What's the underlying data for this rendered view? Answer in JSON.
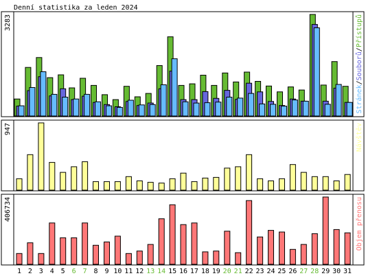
{
  "title": "Denní statistika za leden 2024",
  "colors": {
    "hits": "#66bb33",
    "files": "#6666dd",
    "pages": "#66bbff",
    "visits": "#ffff99",
    "kbytes": "#ff7777",
    "weekend": "#66bb33",
    "text": "#000000",
    "border": "#000000",
    "sidebar_sep": "#000000"
  },
  "chart_data": [
    {
      "type": "bar",
      "panel": "hits-files-pages",
      "ymax_label": "3283",
      "ylim": [
        0,
        3283
      ],
      "side_labels": [
        "Stránek",
        "/",
        "Souborů",
        "/",
        "Přístupů"
      ],
      "side_label_colors": [
        "#66bbff",
        "#000000",
        "#6666dd",
        "#000000",
        "#66bb33"
      ],
      "categories": [
        "1",
        "2",
        "3",
        "4",
        "5",
        "6",
        "7",
        "8",
        "9",
        "10",
        "11",
        "12",
        "13",
        "14",
        "15",
        "16",
        "17",
        "18",
        "19",
        "20",
        "21",
        "22",
        "23",
        "24",
        "25",
        "26",
        "27",
        "28",
        "29",
        "30",
        "31"
      ],
      "series": [
        {
          "name": "Přístupů",
          "values": [
            550,
            1570,
            1890,
            1240,
            1330,
            910,
            1220,
            990,
            690,
            530,
            960,
            620,
            730,
            1630,
            2560,
            990,
            1040,
            1320,
            990,
            1390,
            1100,
            1420,
            1120,
            970,
            780,
            940,
            840,
            3283,
            1000,
            1760,
            960
          ]
        },
        {
          "name": "Souborů",
          "values": [
            320,
            820,
            1270,
            650,
            880,
            530,
            640,
            440,
            370,
            300,
            470,
            340,
            420,
            880,
            1450,
            530,
            530,
            790,
            570,
            830,
            540,
            1060,
            780,
            470,
            340,
            550,
            480,
            2960,
            480,
            900,
            440
          ]
        },
        {
          "name": "Stránek",
          "values": [
            330,
            920,
            1430,
            700,
            610,
            550,
            700,
            460,
            330,
            280,
            510,
            360,
            370,
            1010,
            1850,
            460,
            420,
            430,
            450,
            610,
            580,
            730,
            390,
            380,
            320,
            520,
            480,
            2850,
            380,
            1020,
            440
          ]
        }
      ]
    },
    {
      "type": "bar",
      "panel": "visits",
      "ymax_label": "947",
      "ylim": [
        0,
        947
      ],
      "side_labels": [
        "Návštěv"
      ],
      "side_label_colors": [
        "#ffff99"
      ],
      "categories": [
        "1",
        "2",
        "3",
        "4",
        "5",
        "6",
        "7",
        "8",
        "9",
        "10",
        "11",
        "12",
        "13",
        "14",
        "15",
        "16",
        "17",
        "18",
        "19",
        "20",
        "21",
        "22",
        "23",
        "24",
        "25",
        "26",
        "27",
        "28",
        "29",
        "30",
        "31"
      ],
      "series": [
        {
          "name": "Návštěv",
          "values": [
            160,
            500,
            947,
            390,
            250,
            330,
            400,
            120,
            120,
            120,
            190,
            130,
            110,
            100,
            160,
            240,
            120,
            170,
            180,
            310,
            330,
            500,
            160,
            130,
            160,
            360,
            250,
            190,
            190,
            130,
            220
          ]
        }
      ]
    },
    {
      "type": "bar",
      "panel": "kbytes",
      "ymax_label": "406734",
      "ylim": [
        0,
        406734
      ],
      "side_labels": [
        "Objem přenosu"
      ],
      "side_label_colors": [
        "#ff7777"
      ],
      "categories": [
        "1",
        "2",
        "3",
        "4",
        "5",
        "6",
        "7",
        "8",
        "9",
        "10",
        "11",
        "12",
        "13",
        "14",
        "15",
        "16",
        "17",
        "18",
        "19",
        "20",
        "21",
        "22",
        "23",
        "24",
        "25",
        "26",
        "27",
        "28",
        "29",
        "30",
        "31"
      ],
      "series": [
        {
          "name": "Objem přenosu",
          "values": [
            65000,
            130000,
            65000,
            250000,
            160000,
            160000,
            250000,
            115000,
            135000,
            170000,
            65000,
            80000,
            120000,
            275000,
            360000,
            240000,
            250000,
            75000,
            80000,
            200000,
            70000,
            385000,
            165000,
            205000,
            195000,
            90000,
            120000,
            185000,
            406734,
            210000,
            190000
          ]
        }
      ]
    }
  ],
  "x_labels": [
    {
      "label": "1",
      "weekend": false
    },
    {
      "label": "2",
      "weekend": false
    },
    {
      "label": "3",
      "weekend": false
    },
    {
      "label": "4",
      "weekend": false
    },
    {
      "label": "5",
      "weekend": false
    },
    {
      "label": "6",
      "weekend": true
    },
    {
      "label": "7",
      "weekend": true
    },
    {
      "label": "8",
      "weekend": false
    },
    {
      "label": "9",
      "weekend": false
    },
    {
      "label": "10",
      "weekend": false
    },
    {
      "label": "11",
      "weekend": false
    },
    {
      "label": "12",
      "weekend": false
    },
    {
      "label": "13",
      "weekend": true
    },
    {
      "label": "14",
      "weekend": true
    },
    {
      "label": "15",
      "weekend": false
    },
    {
      "label": "16",
      "weekend": false
    },
    {
      "label": "17",
      "weekend": false
    },
    {
      "label": "18",
      "weekend": false
    },
    {
      "label": "19",
      "weekend": false
    },
    {
      "label": "20",
      "weekend": true
    },
    {
      "label": "21",
      "weekend": true
    },
    {
      "label": "22",
      "weekend": false
    },
    {
      "label": "23",
      "weekend": false
    },
    {
      "label": "24",
      "weekend": false
    },
    {
      "label": "25",
      "weekend": false
    },
    {
      "label": "26",
      "weekend": false
    },
    {
      "label": "27",
      "weekend": true
    },
    {
      "label": "28",
      "weekend": true
    },
    {
      "label": "29",
      "weekend": false
    },
    {
      "label": "30",
      "weekend": false
    },
    {
      "label": "31",
      "weekend": false
    }
  ]
}
